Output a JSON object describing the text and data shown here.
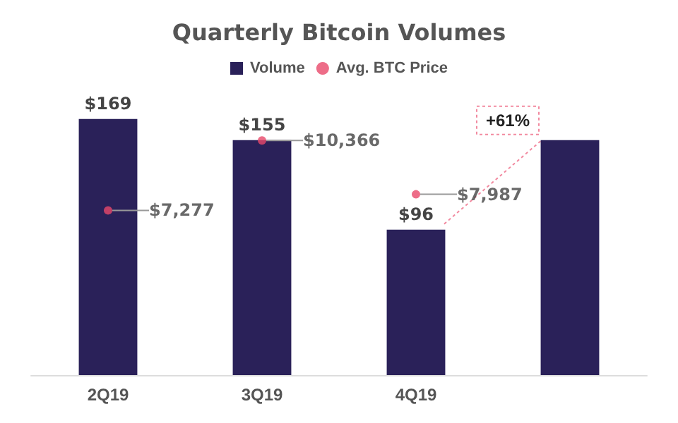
{
  "chart_data": {
    "type": "bar",
    "title": "Quarterly Bitcoin Volumes",
    "categories": [
      "2Q19",
      "3Q19",
      "4Q19",
      null
    ],
    "series": [
      {
        "name": "Volume",
        "color": "#2a2159",
        "values": [
          169,
          155,
          96,
          155
        ],
        "value_labels": [
          "$169",
          "$155",
          "$96",
          null
        ]
      },
      {
        "name": "Avg. BTC Price",
        "type": "scatter",
        "axis": "y2",
        "color": "#e8496a",
        "values": [
          7277,
          10366,
          7987,
          null
        ],
        "value_labels": [
          "$7,277",
          "$10,366",
          "$7,987",
          null
        ]
      }
    ],
    "tick_labels": "x",
    "grid": false,
    "legend": "top",
    "marker": "circle",
    "annotations": [
      "+61%"
    ]
  }
}
